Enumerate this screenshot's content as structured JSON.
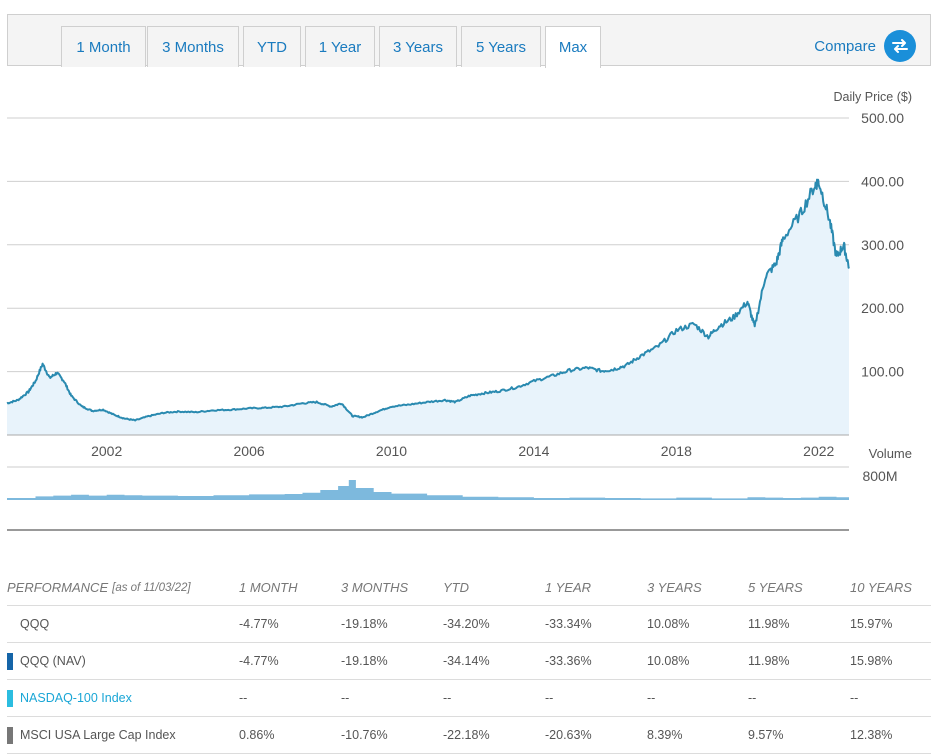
{
  "tabs": [
    {
      "label": "1 Month"
    },
    {
      "label": "3 Months"
    },
    {
      "label": "YTD"
    },
    {
      "label": "1 Year"
    },
    {
      "label": "3 Years"
    },
    {
      "label": "5 Years"
    },
    {
      "label": "Max",
      "active": true
    }
  ],
  "compare": {
    "label": "Compare",
    "icon": "swap-arrows-icon"
  },
  "colors": {
    "accent": "#1a7bbf",
    "line": "#2a8ab0",
    "area": "#e8f3fb",
    "volume": "#7db9dd"
  },
  "chart_data": {
    "type": "line",
    "ylabel": "Daily Price ($)",
    "ylim": [
      0,
      500
    ],
    "yticks": [
      "500.00",
      "400.00",
      "300.00",
      "200.00",
      "100.00"
    ],
    "xticks": [
      "2002",
      "2006",
      "2010",
      "2014",
      "2018",
      "2022"
    ],
    "xlim": [
      1999.2,
      2022.85
    ],
    "grid": true,
    "series": [
      {
        "values_note": "",
        "x": [
          1999.2,
          1999.5,
          1999.8,
          2000.0,
          2000.2,
          2000.4,
          2000.6,
          2000.8,
          2001.0,
          2001.3,
          2001.6,
          2001.9,
          2002.2,
          2002.5,
          2002.8,
          2003.2,
          2003.6,
          2004.0,
          2004.5,
          2005.0,
          2005.5,
          2006.0,
          2006.5,
          2007.0,
          2007.5,
          2007.9,
          2008.3,
          2008.6,
          2008.9,
          2009.2,
          2009.6,
          2010.0,
          2010.5,
          2011.0,
          2011.5,
          2011.8,
          2012.2,
          2012.6,
          2013.0,
          2013.5,
          2014.0,
          2014.5,
          2015.0,
          2015.5,
          2015.9,
          2016.2,
          2016.6,
          2017.0,
          2017.5,
          2018.0,
          2018.5,
          2018.9,
          2019.2,
          2019.6,
          2020.0,
          2020.2,
          2020.5,
          2020.8,
          2021.0,
          2021.5,
          2021.9,
          2022.0,
          2022.3,
          2022.5,
          2022.7,
          2022.85
        ],
        "y": [
          50,
          55,
          68,
          85,
          112,
          90,
          98,
          85,
          62,
          45,
          38,
          40,
          32,
          26,
          23,
          30,
          35,
          37,
          36,
          39,
          40,
          42,
          43,
          45,
          50,
          52,
          45,
          50,
          30,
          28,
          37,
          45,
          48,
          52,
          55,
          52,
          62,
          66,
          69,
          75,
          85,
          93,
          102,
          106,
          101,
          103,
          110,
          125,
          140,
          165,
          175,
          155,
          172,
          185,
          210,
          170,
          250,
          270,
          310,
          350,
          395,
          400,
          340,
          280,
          300,
          265
        ]
      }
    ],
    "volume": {
      "label": "Volume",
      "tick": "800M",
      "x": [
        1999.2,
        2000.0,
        2000.5,
        2001.0,
        2001.5,
        2002.0,
        2002.5,
        2003.0,
        2004.0,
        2005.0,
        2006.0,
        2007.0,
        2007.5,
        2008.0,
        2008.5,
        2008.8,
        2009.0,
        2009.5,
        2010.0,
        2011.0,
        2012.0,
        2013.0,
        2014.0,
        2015.0,
        2016.0,
        2017.0,
        2018.0,
        2019.0,
        2020.0,
        2020.5,
        2021.0,
        2021.5,
        2022.0,
        2022.5,
        2022.85
      ],
      "values": [
        0.5,
        0.9,
        1.1,
        1.3,
        1.1,
        1.3,
        1.2,
        1.1,
        1.0,
        1.2,
        1.4,
        1.5,
        1.8,
        2.5,
        3.5,
        5.0,
        3.0,
        2.0,
        1.6,
        1.2,
        0.8,
        0.7,
        0.5,
        0.6,
        0.5,
        0.4,
        0.6,
        0.4,
        0.7,
        0.6,
        0.5,
        0.6,
        0.8,
        0.7,
        0.6
      ]
    }
  },
  "performance": {
    "header": {
      "label": "PERFORMANCE",
      "asof": "[as of 11/03/22]",
      "columns": [
        "1 MONTH",
        "3 MONTHS",
        "YTD",
        "1 YEAR",
        "3 YEARS",
        "5 YEARS",
        "10 YEARS"
      ]
    },
    "rows": [
      {
        "name": "QQQ",
        "swatch": "",
        "name_color": "#555555",
        "values": [
          "-4.77%",
          "-19.18%",
          "-34.20%",
          "-33.34%",
          "10.08%",
          "11.98%",
          "15.97%"
        ]
      },
      {
        "name": "QQQ (NAV)",
        "swatch": "#1565a8",
        "name_color": "#555555",
        "values": [
          "-4.77%",
          "-19.18%",
          "-34.14%",
          "-33.36%",
          "10.08%",
          "11.98%",
          "15.98%"
        ]
      },
      {
        "name": "NASDAQ-100 Index",
        "swatch": "#2bbde0",
        "name_color": "#1aa6d6",
        "values": [
          "--",
          "--",
          "--",
          "--",
          "--",
          "--",
          "--"
        ]
      },
      {
        "name": "MSCI USA Large Cap Index",
        "swatch": "#777777",
        "name_color": "#555555",
        "values": [
          "0.86%",
          "-10.76%",
          "-22.18%",
          "-20.63%",
          "8.39%",
          "9.57%",
          "12.38%"
        ]
      }
    ]
  }
}
